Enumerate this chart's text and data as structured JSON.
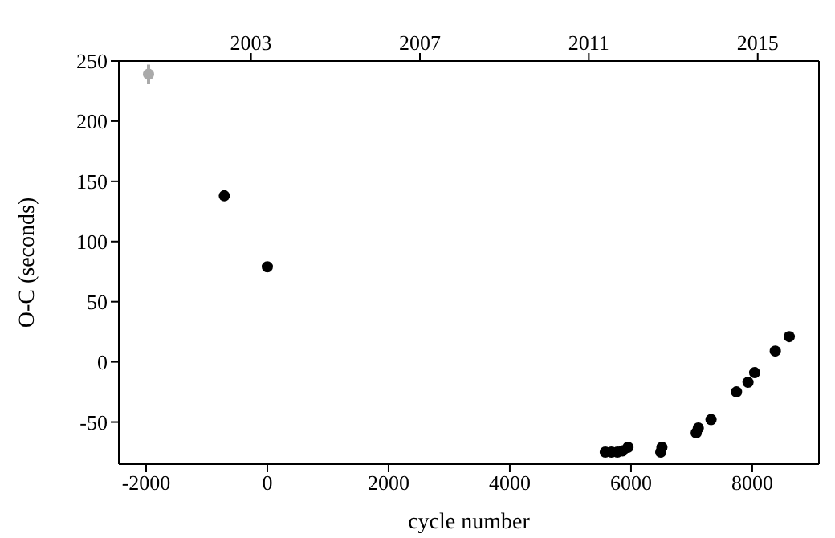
{
  "chart_data": {
    "type": "scatter",
    "xlabel": "cycle number",
    "ylabel": "O-C (seconds)",
    "marker": "circle",
    "xlim": [
      -2450,
      9100
    ],
    "xticks": [
      -2000,
      0,
      2000,
      4000,
      6000,
      8000
    ],
    "ylim": [
      -85,
      250
    ],
    "yticks": [
      -50,
      0,
      50,
      100,
      150,
      200,
      250
    ],
    "x2lim": [
      1999.87,
      2016.45
    ],
    "x2ticks": [
      2003,
      2007,
      2011,
      2015
    ],
    "series": [
      {
        "color": "#000000",
        "x": [
          -710,
          0,
          5575,
          5675,
          5775,
          5860,
          5950,
          6490,
          6510,
          7075,
          7110,
          7320,
          7740,
          7930,
          8040,
          8380,
          8610
        ],
        "values": [
          138,
          79,
          -75,
          -75,
          -75,
          -74,
          -71,
          -75,
          -71,
          -59,
          -55,
          -48,
          -25,
          -17,
          -9,
          9,
          21
        ]
      },
      {
        "color": "#aaaaaa",
        "x": [
          -1960
        ],
        "values": [
          239
        ],
        "errors": [
          8
        ]
      }
    ]
  }
}
